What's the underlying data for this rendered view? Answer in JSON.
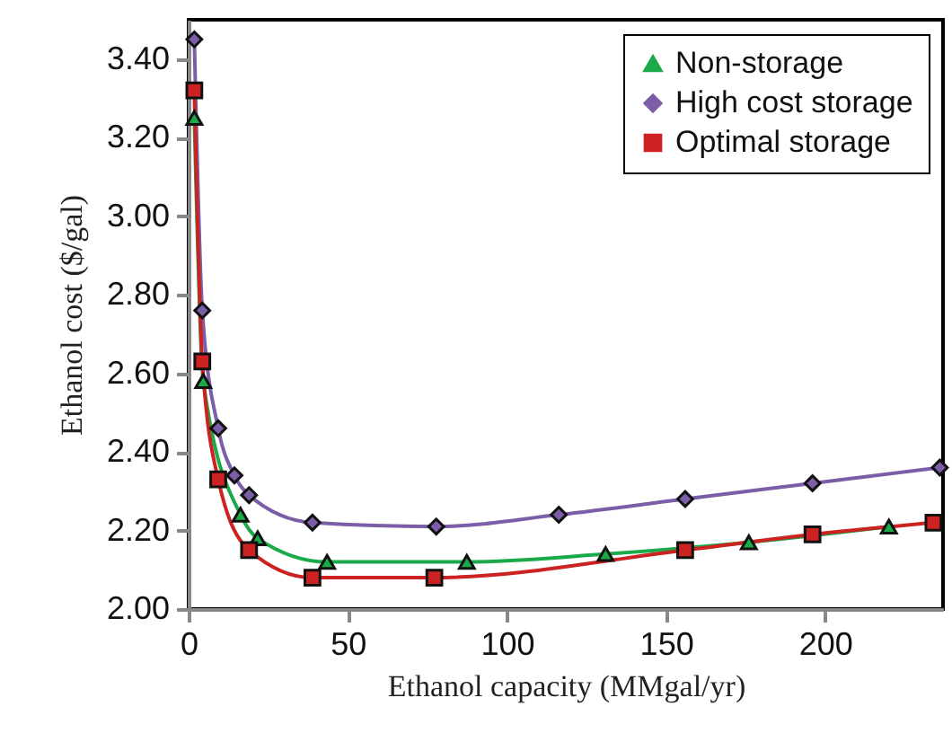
{
  "chart_data": {
    "type": "line",
    "xlabel": "Ethanol capacity (MMgal/yr)",
    "ylabel": "Ethanol cost ($/gal)",
    "xlim": [
      0,
      237
    ],
    "xticks": [
      0,
      50,
      100,
      150,
      200
    ],
    "ylim": [
      2.0,
      3.5
    ],
    "yticks": [
      {
        "value": 2.0,
        "label": "2.00"
      },
      {
        "value": 2.2,
        "label": "2.20"
      },
      {
        "value": 2.4,
        "label": "2.40"
      },
      {
        "value": 2.6,
        "label": "2.60"
      },
      {
        "value": 2.8,
        "label": "2.80"
      },
      {
        "value": 3.0,
        "label": "3.00"
      },
      {
        "value": 3.2,
        "label": "3.20"
      },
      {
        "value": 3.4,
        "label": "3.40"
      }
    ],
    "grid": false,
    "legend": "top right",
    "line_style": "solid",
    "series": [
      {
        "name": "Non-storage",
        "color": "#1aaa4a",
        "marker": "triangle",
        "x": [
          1.8,
          4.6,
          16.3,
          21.7,
          43.5,
          87.4,
          131,
          176,
          220
        ],
        "values": [
          3.25,
          2.58,
          2.24,
          2.18,
          2.12,
          2.12,
          2.14,
          2.17,
          2.21
        ]
      },
      {
        "name": "High cost storage",
        "color": "#7b5ea7",
        "marker": "diamond",
        "x": [
          1.8,
          4.3,
          9.3,
          14.4,
          19,
          38.9,
          77.8,
          116.3,
          156,
          196,
          236
        ],
        "values": [
          3.45,
          2.76,
          2.46,
          2.34,
          2.29,
          2.22,
          2.21,
          2.24,
          2.28,
          2.32,
          2.36
        ]
      },
      {
        "name": "Optimal storage",
        "color": "#cc2222",
        "marker": "square",
        "x": [
          1.8,
          4.3,
          9.3,
          19,
          38.9,
          77.2,
          156,
          196,
          234
        ],
        "values": [
          3.32,
          2.63,
          2.33,
          2.15,
          2.08,
          2.08,
          2.15,
          2.19,
          2.22
        ]
      }
    ]
  }
}
